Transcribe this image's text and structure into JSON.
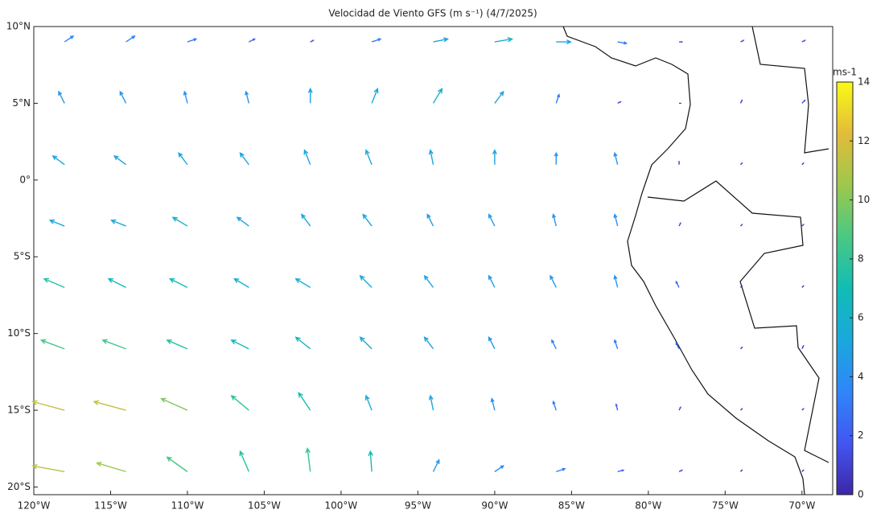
{
  "chart_data": {
    "type": "quiver",
    "title": "Velocidad de Viento GFS (m s⁻¹) (4/7/2025)",
    "xlim": [
      -120,
      -68
    ],
    "ylim": [
      -20.5,
      10
    ],
    "xticks": [
      {
        "value": -120,
        "label": "120°W"
      },
      {
        "value": -115,
        "label": "115°W"
      },
      {
        "value": -110,
        "label": "110°W"
      },
      {
        "value": -105,
        "label": "105°W"
      },
      {
        "value": -100,
        "label": "100°W"
      },
      {
        "value": -95,
        "label": "95°W"
      },
      {
        "value": -90,
        "label": "90°W"
      },
      {
        "value": -85,
        "label": "85°W"
      },
      {
        "value": -80,
        "label": "80°W"
      },
      {
        "value": -75,
        "label": "75°W"
      },
      {
        "value": -70,
        "label": "70°W"
      }
    ],
    "yticks": [
      {
        "value": 10,
        "label": "10°N"
      },
      {
        "value": 5,
        "label": "5°N"
      },
      {
        "value": 0,
        "label": "0°"
      },
      {
        "value": -5,
        "label": "5°S"
      },
      {
        "value": -10,
        "label": "10°S"
      },
      {
        "value": -15,
        "label": "15°S"
      },
      {
        "value": -20,
        "label": "20°S"
      }
    ],
    "lon": [
      -118,
      -114,
      -110,
      -106,
      -102,
      -98,
      -94,
      -90,
      -86,
      -82,
      -78,
      -74,
      -70
    ],
    "lat": [
      9,
      5,
      1,
      -3,
      -7,
      -11,
      -15,
      -19
    ],
    "u": [
      [
        3,
        3,
        3,
        2,
        1,
        3,
        5,
        6,
        5,
        3,
        1,
        1,
        1
      ],
      [
        -2,
        -2,
        -1,
        -1,
        0,
        2,
        3,
        3,
        1,
        1,
        0.5,
        0.5,
        1
      ],
      [
        -4,
        -4,
        -3,
        -3,
        -2,
        -2,
        -1,
        0,
        0,
        -1,
        0,
        0.5,
        0.5
      ],
      [
        -5,
        -5,
        -5,
        -4,
        -3,
        -3,
        -2,
        -2,
        -1,
        -1,
        0.5,
        0.5,
        0.5
      ],
      [
        -7,
        -6,
        -6,
        -5,
        -5,
        -4,
        -3,
        -2,
        -2,
        -1,
        -1,
        0.5,
        0.5
      ],
      [
        -8,
        -8,
        -7,
        -6,
        -5,
        -4,
        -3,
        -2,
        -1.5,
        -1,
        -1,
        0.5,
        0.5
      ],
      [
        -11,
        -11,
        -9,
        -6,
        -4,
        -2,
        -1,
        -1,
        -1,
        -0.5,
        0.5,
        0.5,
        0.5
      ],
      [
        -11,
        -10,
        -7,
        -3,
        -1,
        -0.5,
        2,
        3,
        3,
        2,
        1,
        0.5,
        0.5
      ]
    ],
    "v": [
      [
        2,
        2,
        1,
        1,
        0.5,
        1,
        1,
        1,
        0,
        -0.5,
        0,
        0.5,
        0.5
      ],
      [
        4,
        4,
        4,
        4,
        5,
        5,
        5,
        4,
        3,
        0.5,
        0,
        1,
        1
      ],
      [
        3,
        3,
        4,
        4,
        5,
        5,
        5,
        5,
        4,
        4,
        1,
        0.5,
        0.5
      ],
      [
        2,
        2,
        3,
        3,
        4,
        4,
        4,
        4,
        4,
        4,
        1,
        0.5,
        0.5
      ],
      [
        3,
        3,
        3,
        3,
        3,
        4,
        4,
        4,
        4,
        4,
        2,
        0.5,
        0.5
      ],
      [
        3,
        3,
        3,
        3,
        4,
        4,
        4,
        4,
        3,
        3,
        2,
        0.5,
        1
      ],
      [
        3,
        3,
        4,
        5,
        6,
        5,
        5,
        4,
        3,
        2,
        1,
        0.5,
        0.5
      ],
      [
        2,
        3,
        5,
        7,
        8,
        7,
        4,
        2,
        1,
        0.5,
        0.5,
        0.5,
        0.5
      ]
    ],
    "clim": [
      0,
      14
    ],
    "cticks": [
      0,
      2,
      4,
      6,
      8,
      10,
      12,
      14
    ],
    "colorbar_label": "ms-1",
    "colormap": [
      "#3e26a8",
      "#4256f2",
      "#2f86f9",
      "#1aa8dc",
      "#10bdb4",
      "#4ac883",
      "#9dc84c",
      "#e3bb3a",
      "#f9fb15"
    ]
  }
}
